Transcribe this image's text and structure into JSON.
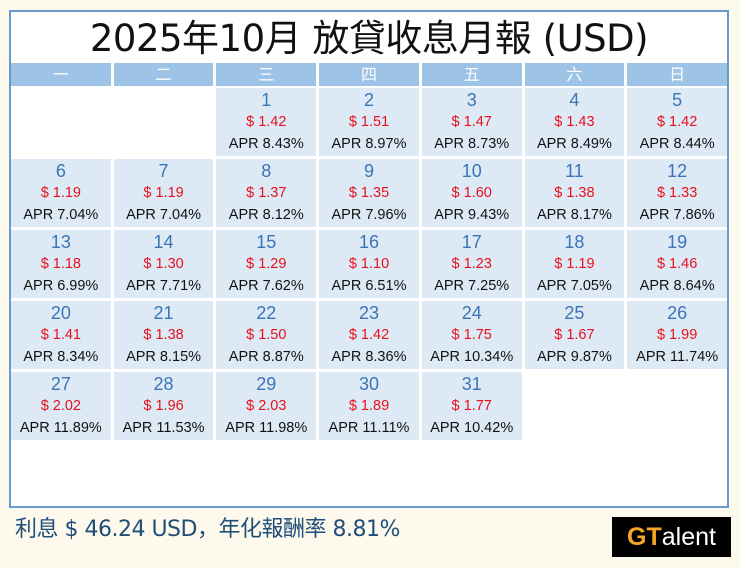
{
  "title": "2025年10月 放貸收息月報 (USD)",
  "weekdays": [
    "一",
    "二",
    "三",
    "四",
    "五",
    "六",
    "日"
  ],
  "leading_blank_days": 2,
  "days": [
    {
      "day": "1",
      "amount": "$ 1.42",
      "apr": "APR 8.43%"
    },
    {
      "day": "2",
      "amount": "$ 1.51",
      "apr": "APR 8.97%"
    },
    {
      "day": "3",
      "amount": "$ 1.47",
      "apr": "APR 8.73%"
    },
    {
      "day": "4",
      "amount": "$ 1.43",
      "apr": "APR 8.49%"
    },
    {
      "day": "5",
      "amount": "$ 1.42",
      "apr": "APR 8.44%"
    },
    {
      "day": "6",
      "amount": "$ 1.19",
      "apr": "APR 7.04%"
    },
    {
      "day": "7",
      "amount": "$ 1.19",
      "apr": "APR 7.04%"
    },
    {
      "day": "8",
      "amount": "$ 1.37",
      "apr": "APR 8.12%"
    },
    {
      "day": "9",
      "amount": "$ 1.35",
      "apr": "APR 7.96%"
    },
    {
      "day": "10",
      "amount": "$ 1.60",
      "apr": "APR 9.43%"
    },
    {
      "day": "11",
      "amount": "$ 1.38",
      "apr": "APR 8.17%"
    },
    {
      "day": "12",
      "amount": "$ 1.33",
      "apr": "APR 7.86%"
    },
    {
      "day": "13",
      "amount": "$ 1.18",
      "apr": "APR 6.99%"
    },
    {
      "day": "14",
      "amount": "$ 1.30",
      "apr": "APR 7.71%"
    },
    {
      "day": "15",
      "amount": "$ 1.29",
      "apr": "APR 7.62%"
    },
    {
      "day": "16",
      "amount": "$ 1.10",
      "apr": "APR 6.51%"
    },
    {
      "day": "17",
      "amount": "$ 1.23",
      "apr": "APR 7.25%"
    },
    {
      "day": "18",
      "amount": "$ 1.19",
      "apr": "APR 7.05%"
    },
    {
      "day": "19",
      "amount": "$ 1.46",
      "apr": "APR 8.64%"
    },
    {
      "day": "20",
      "amount": "$ 1.41",
      "apr": "APR 8.34%"
    },
    {
      "day": "21",
      "amount": "$ 1.38",
      "apr": "APR 8.15%"
    },
    {
      "day": "22",
      "amount": "$ 1.50",
      "apr": "APR 8.87%"
    },
    {
      "day": "23",
      "amount": "$ 1.42",
      "apr": "APR 8.36%"
    },
    {
      "day": "24",
      "amount": "$ 1.75",
      "apr": "APR 10.34%"
    },
    {
      "day": "25",
      "amount": "$ 1.67",
      "apr": "APR 9.87%"
    },
    {
      "day": "26",
      "amount": "$ 1.99",
      "apr": "APR 11.74%"
    },
    {
      "day": "27",
      "amount": "$ 2.02",
      "apr": "APR 11.89%"
    },
    {
      "day": "28",
      "amount": "$ 1.96",
      "apr": "APR 11.53%"
    },
    {
      "day": "29",
      "amount": "$ 2.03",
      "apr": "APR 11.98%"
    },
    {
      "day": "30",
      "amount": "$ 1.89",
      "apr": "APR 11.11%"
    },
    {
      "day": "31",
      "amount": "$ 1.77",
      "apr": "APR 10.42%"
    }
  ],
  "summary": "利息 $ 46.24 USD，年化報酬率 8.81%",
  "logo": {
    "g": "G",
    "t": "T",
    "rest": "alent"
  },
  "colors": {
    "header_bg": "#9dc3e6",
    "cell_bg": "#ddeaf6",
    "day_number": "#3b74b6",
    "amount": "#e8101c",
    "summary_text": "#1f4e79",
    "frame_border": "#6a9acb",
    "logo_accent": "#f5a623"
  }
}
